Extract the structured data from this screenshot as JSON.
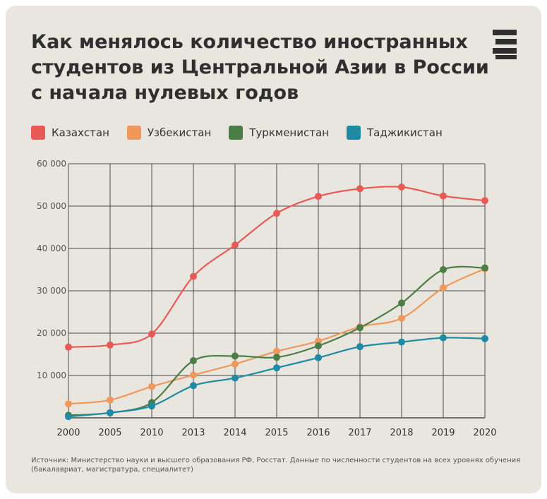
{
  "title_lines": [
    "Как менялось количество иностранных",
    "студентов из Центральной Азии в России",
    "с начала нулевых годов"
  ],
  "logo": {
    "icon": "stacked-bars-logo-icon",
    "color": "#2f2f2f"
  },
  "source": "Источник: Министерство науки и высшего образования РФ, Росстат. Данные по численности студентов на всех уровнях обучения (бакалавриат, магистратура, специалитет)",
  "chart_data": {
    "type": "line",
    "title": "Как менялось количество иностранных студентов из Центральной Азии в России с начала нулевых годов",
    "xlabel": "",
    "ylabel": "",
    "x": [
      "2000",
      "2005",
      "2010",
      "2013",
      "2014",
      "2015",
      "2016",
      "2017",
      "2018",
      "2019",
      "2020"
    ],
    "ylim": [
      0,
      60000
    ],
    "yticks": [
      10000,
      20000,
      30000,
      40000,
      50000,
      60000
    ],
    "ytick_labels": [
      "10 000",
      "20 000",
      "30 000",
      "40 000",
      "50 000",
      "60 000"
    ],
    "grid": true,
    "legend_position": "top-left",
    "series": [
      {
        "name": "Казахстан",
        "color": "#e85a55",
        "values": [
          16700,
          17200,
          19800,
          33400,
          40800,
          48300,
          52300,
          54100,
          54500,
          52400,
          51300
        ]
      },
      {
        "name": "Узбекистан",
        "color": "#f0975a",
        "values": [
          3300,
          4200,
          7400,
          10100,
          12700,
          15700,
          18100,
          21500,
          23500,
          30700,
          35200
        ]
      },
      {
        "name": "Туркменистан",
        "color": "#4b7d46",
        "values": [
          600,
          1200,
          3600,
          13500,
          14600,
          14300,
          17000,
          21300,
          27100,
          35000,
          35400
        ]
      },
      {
        "name": "Таджикистан",
        "color": "#1f8aa3",
        "values": [
          300,
          1200,
          2800,
          7600,
          9400,
          11800,
          14200,
          16800,
          17900,
          18900,
          18700
        ]
      }
    ]
  }
}
